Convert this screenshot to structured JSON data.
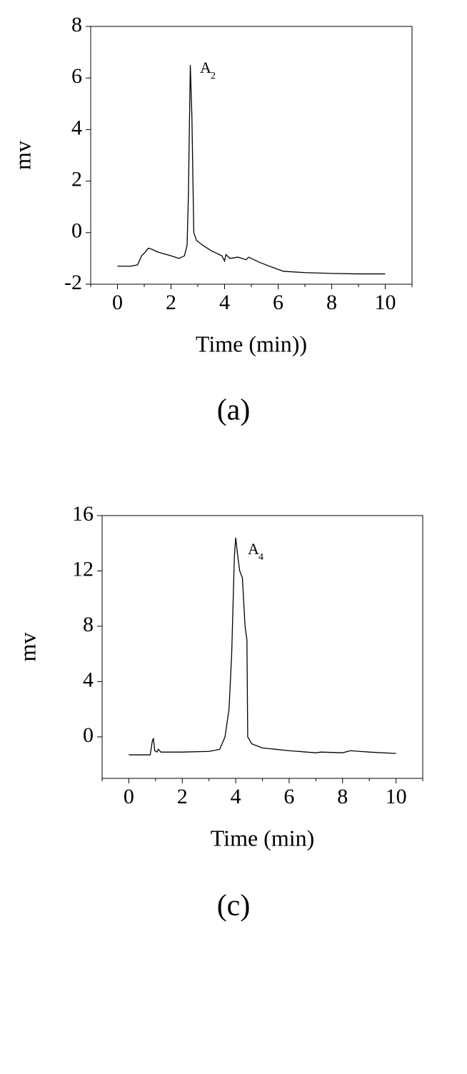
{
  "chart_data": [
    {
      "type": "line",
      "annotation": {
        "text": "A",
        "subscript": "2"
      },
      "x_label": "Time (min))",
      "y_label": "mv",
      "caption": "(a)",
      "xlim": [
        -1,
        11
      ],
      "ylim": [
        -2,
        8
      ],
      "xticks": [
        0,
        2,
        4,
        6,
        8,
        10
      ],
      "xminorticks": [
        -1,
        1,
        3,
        5,
        7,
        9,
        11
      ],
      "yticks": [
        -2,
        0,
        2,
        4,
        6,
        8
      ],
      "color": "#000000",
      "x": [
        0,
        0.5,
        0.75,
        0.9,
        1.0,
        1.15,
        1.3,
        1.5,
        2.0,
        2.3,
        2.5,
        2.6,
        2.65,
        2.72,
        2.78,
        2.85,
        2.95,
        3.2,
        3.5,
        3.9,
        4.0,
        4.05,
        4.2,
        4.5,
        4.8,
        4.9,
        5.3,
        5.8,
        6.2,
        7,
        8,
        9,
        10
      ],
      "values": [
        -1.3,
        -1.3,
        -1.25,
        -0.9,
        -0.8,
        -0.6,
        -0.65,
        -0.75,
        -0.9,
        -1.0,
        -0.9,
        -0.5,
        1.5,
        6.5,
        4.5,
        0,
        -0.3,
        -0.5,
        -0.7,
        -0.9,
        -1.1,
        -0.85,
        -1.0,
        -0.95,
        -1.05,
        -0.95,
        -1.15,
        -1.35,
        -1.5,
        -1.55,
        -1.58,
        -1.6,
        -1.6
      ]
    },
    {
      "type": "line",
      "annotation": {
        "text": "A",
        "subscript": "4"
      },
      "x_label": "Time (min)",
      "y_label": "mv",
      "caption": "(c)",
      "xlim": [
        -1,
        11
      ],
      "ylim": [
        -3,
        16
      ],
      "xticks": [
        0,
        2,
        4,
        6,
        8,
        10
      ],
      "xminorticks": [
        -1,
        1,
        3,
        5,
        7,
        9,
        11
      ],
      "yticks": [
        0,
        4,
        8,
        12,
        16
      ],
      "color": "#000000",
      "x": [
        0,
        0.8,
        0.88,
        0.92,
        0.97,
        1.05,
        1.1,
        1.2,
        2,
        3,
        3.4,
        3.6,
        3.75,
        3.85,
        3.95,
        4.0,
        4.08,
        4.15,
        4.25,
        4.35,
        4.42,
        4.45,
        4.6,
        5,
        6,
        7,
        7.2,
        8,
        8.3,
        9,
        10
      ],
      "values": [
        -1.3,
        -1.3,
        -0.3,
        -0.1,
        -1.0,
        -1.1,
        -0.9,
        -1.1,
        -1.1,
        -1.05,
        -0.9,
        0,
        2,
        6,
        13,
        14.4,
        13,
        12,
        11.5,
        8,
        7,
        0,
        -0.5,
        -0.8,
        -1.0,
        -1.15,
        -1.1,
        -1.15,
        -1.0,
        -1.1,
        -1.2
      ]
    }
  ]
}
